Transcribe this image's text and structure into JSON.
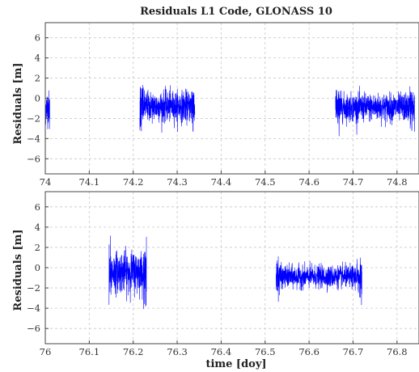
{
  "chart_data": [
    {
      "type": "line",
      "title": "Residuals L1 Code, GLONASS 10",
      "xlabel": "",
      "ylabel": "Residuals [m]",
      "xlim": [
        74.0,
        74.85
      ],
      "ylim": [
        -7.5,
        7.5
      ],
      "xticks": [
        74,
        74.1,
        74.2,
        74.3,
        74.4,
        74.5,
        74.6,
        74.7,
        74.8
      ],
      "xtick_labels": [
        "74",
        "74.1",
        "74.2",
        "74.3",
        "74.4",
        "74.5",
        "74.6",
        "74.7",
        "74.8"
      ],
      "yticks": [
        -6,
        -4,
        -2,
        0,
        2,
        4,
        6
      ],
      "ytick_labels": [
        "−6",
        "−4",
        "−2",
        "0",
        "2",
        "4",
        "6"
      ],
      "grid": true,
      "color": "#0000ff",
      "segments": [
        {
          "x_start": 74.0,
          "x_end": 74.01,
          "mean": -0.9,
          "spread": 1.1
        },
        {
          "x_start": 74.215,
          "x_end": 74.34,
          "mean": -0.8,
          "spread": 1.0
        },
        {
          "x_start": 74.66,
          "x_end": 74.84,
          "mean": -0.9,
          "spread": 0.9
        }
      ]
    },
    {
      "type": "line",
      "title": "",
      "xlabel": "time [doy]",
      "ylabel": "Residuals [m]",
      "xlim": [
        76.0,
        76.85
      ],
      "ylim": [
        -7.5,
        7.5
      ],
      "xticks": [
        76,
        76.1,
        76.2,
        76.3,
        76.4,
        76.5,
        76.6,
        76.7,
        76.8
      ],
      "xtick_labels": [
        "76",
        "76.1",
        "76.2",
        "76.3",
        "76.4",
        "76.5",
        "76.6",
        "76.7",
        "76.8"
      ],
      "yticks": [
        -6,
        -4,
        -2,
        0,
        2,
        4,
        6
      ],
      "ytick_labels": [
        "−6",
        "−4",
        "−2",
        "0",
        "2",
        "4",
        "6"
      ],
      "grid": true,
      "color": "#0000ff",
      "segments": [
        {
          "x_start": 76.145,
          "x_end": 76.23,
          "mean": -0.4,
          "spread": 1.3
        },
        {
          "x_start": 76.525,
          "x_end": 76.72,
          "mean": -0.9,
          "spread": 0.7
        }
      ]
    }
  ]
}
